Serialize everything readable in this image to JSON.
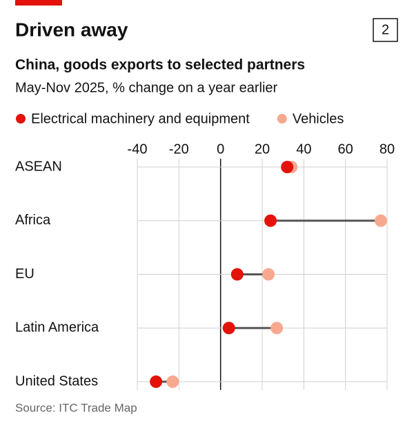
{
  "chart_data": {
    "type": "dumbbell",
    "title": "Driven away",
    "chart_number": "2",
    "subtitle": "China, goods exports to selected partners",
    "subtitle2": "May-Nov 2025, % change on a year earlier",
    "source": "Source: ITC Trade Map",
    "categories": [
      "ASEAN",
      "Africa",
      "EU",
      "Latin America",
      "United States"
    ],
    "series": [
      {
        "name": "Electrical machinery and equipment",
        "color": "#e3120b",
        "values": [
          32,
          24,
          8,
          4,
          -31
        ]
      },
      {
        "name": "Vehicles",
        "color": "#f6a98f",
        "values": [
          34,
          77,
          23,
          27,
          -23
        ]
      }
    ],
    "xlim": [
      -40,
      80
    ],
    "xticks": [
      -40,
      -20,
      0,
      20,
      40,
      60,
      80
    ],
    "grid": true
  }
}
